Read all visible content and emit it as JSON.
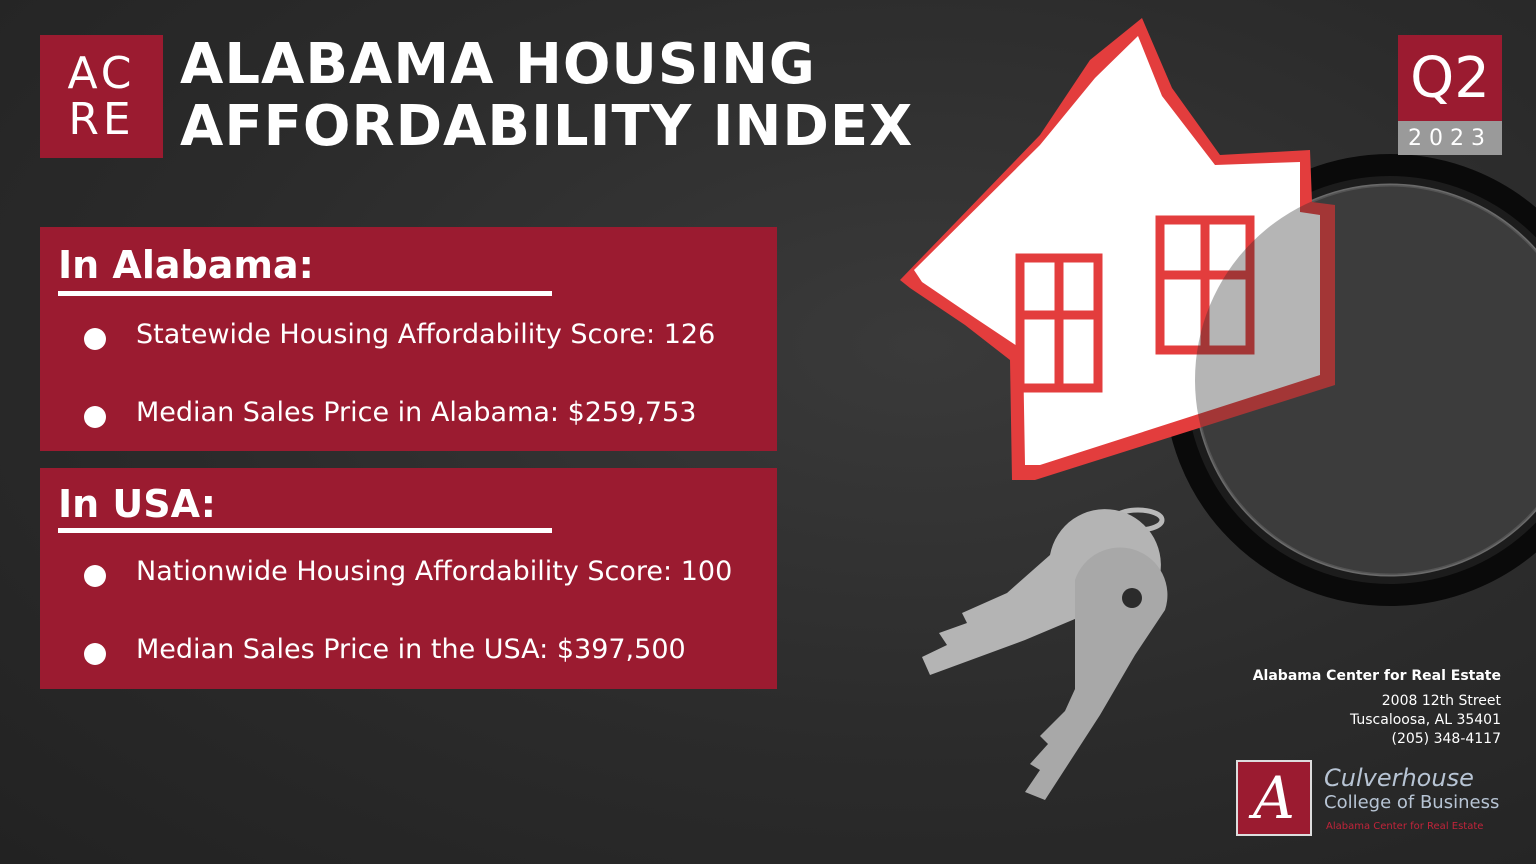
{
  "logo": {
    "line1": "AC",
    "line2": "RE"
  },
  "title": {
    "line1": "ALABAMA HOUSING",
    "line2": "AFFORDABILITY INDEX"
  },
  "period": {
    "quarter": "Q2",
    "year": "2023"
  },
  "alabama": {
    "heading": "In Alabama:",
    "items": [
      "Statewide Housing Affordability Score: 126",
      "Median Sales Price in Alabama: $259,753"
    ]
  },
  "usa": {
    "heading": "In USA:",
    "items": [
      "Nationwide Housing Affordability Score: 100",
      "Median Sales Price in the USA: $397,500"
    ]
  },
  "contact": {
    "organization": "Alabama Center for Real Estate",
    "street": "2008 12th Street",
    "city": "Tuscaloosa, AL 35401",
    "phone": "(205) 348-4117"
  },
  "college": {
    "letter": "A",
    "name_line1": "Culverhouse",
    "name_line2": "College of Business",
    "name_line3": "Alabama Center for Real Estate"
  },
  "colors": {
    "brand_red": "#9b1b30",
    "background": "#2b2b2b",
    "gray": "#9a9a9a"
  }
}
